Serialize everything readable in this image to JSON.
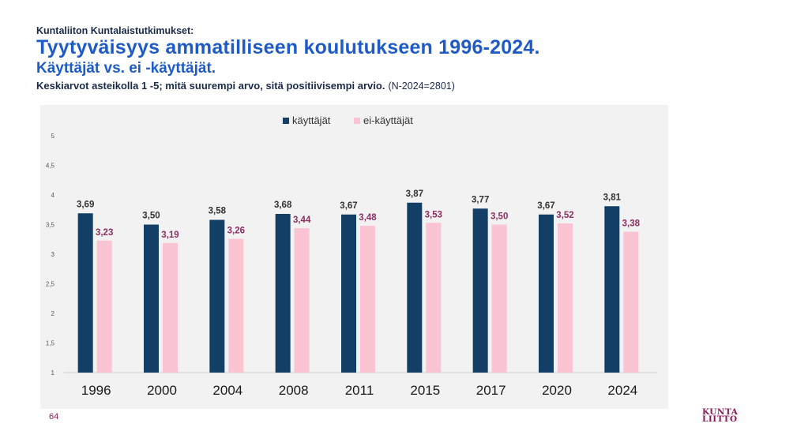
{
  "header": {
    "org": "Kuntaliiton Kuntalaistutkimukset:",
    "title": "Tyytyväisyys ammatilliseen koulutukseen 1996-2024.",
    "subtitle": "Käyttäjät vs. ei -käyttäjät.",
    "description": "Keskiarvot asteikolla 1 -5; mitä suurempi arvo, sitä positiivisempi arvio.",
    "n_note": "(N-2024=2801)"
  },
  "footer": {
    "page_number": "64",
    "logo_line1": "KUNTA",
    "logo_line2": "LIITTO"
  },
  "colors": {
    "series1": "#133f66",
    "series2": "#fbc4d2",
    "label1": "#333333",
    "label2": "#8b2f63"
  },
  "chart_data": {
    "type": "bar",
    "title": "",
    "categories": [
      "1996",
      "2000",
      "2004",
      "2008",
      "2011",
      "2015",
      "2017",
      "2020",
      "2024"
    ],
    "series": [
      {
        "name": "käyttäjät",
        "values": [
          3.69,
          3.5,
          3.58,
          3.68,
          3.67,
          3.87,
          3.77,
          3.67,
          3.81
        ],
        "labels": [
          "3,69",
          "3,50",
          "3,58",
          "3,68",
          "3,67",
          "3,87",
          "3,77",
          "3,67",
          "3,81"
        ]
      },
      {
        "name": "ei-käyttäjät",
        "values": [
          3.23,
          3.19,
          3.26,
          3.44,
          3.48,
          3.53,
          3.5,
          3.52,
          3.38
        ],
        "labels": [
          "3,23",
          "3,19",
          "3,26",
          "3,44",
          "3,48",
          "3,53",
          "3,50",
          "3,52",
          "3,38"
        ]
      }
    ],
    "ylim": [
      1,
      5
    ],
    "yticks": [
      1,
      1.5,
      2,
      2.5,
      3,
      3.5,
      4,
      4.5,
      5
    ],
    "ytick_labels": [
      "1",
      "1,5",
      "2",
      "2,5",
      "3",
      "3,5",
      "4",
      "4,5",
      "5"
    ],
    "legend_position": "top-center",
    "grid": false,
    "xlabel": "",
    "ylabel": ""
  }
}
